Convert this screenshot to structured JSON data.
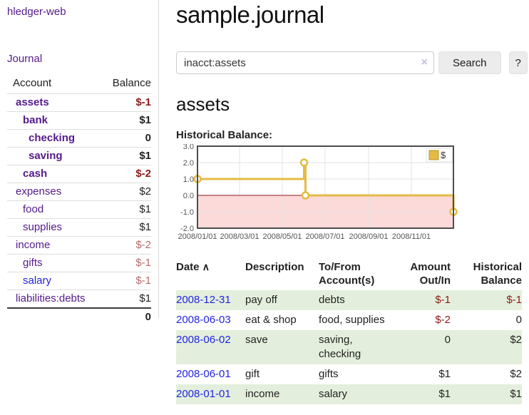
{
  "colors": {
    "link_visited": "#551a8b",
    "link_new": "#2323e0",
    "negative_strong": "#8b1a1a",
    "negative_soft": "#b76b6b",
    "row_shade_green": "#e3efdc",
    "button_bg": "#ececec"
  },
  "sidebar": {
    "brand": "hledger-web",
    "nav_journal": "Journal",
    "accounts": {
      "header_account": "Account",
      "header_balance": "Balance",
      "rows": [
        {
          "account": "assets",
          "balance": "$-1",
          "depth": 1,
          "bold": true,
          "negative": "strong"
        },
        {
          "account": "bank",
          "balance": "$1",
          "depth": 2,
          "bold": true,
          "negative": "none"
        },
        {
          "account": "checking",
          "balance": "0",
          "depth": 3,
          "bold": true,
          "negative": "none"
        },
        {
          "account": "saving",
          "balance": "$1",
          "depth": 3,
          "bold": true,
          "negative": "none"
        },
        {
          "account": "cash",
          "balance": "$-2",
          "depth": 2,
          "bold": true,
          "negative": "strong"
        },
        {
          "account": "expenses",
          "balance": "$2",
          "depth": 1,
          "bold": false,
          "negative": "none"
        },
        {
          "account": "food",
          "balance": "$1",
          "depth": 2,
          "bold": false,
          "negative": "none"
        },
        {
          "account": "supplies",
          "balance": "$1",
          "depth": 2,
          "bold": false,
          "negative": "none"
        },
        {
          "account": "income",
          "balance": "$-2",
          "depth": 1,
          "bold": false,
          "negative": "soft"
        },
        {
          "account": "gifts",
          "balance": "$-1",
          "depth": 2,
          "bold": false,
          "negative": "soft"
        },
        {
          "account": "salary",
          "balance": "$-1",
          "depth": 2,
          "bold": false,
          "negative": "soft",
          "link_style": "new"
        },
        {
          "account": "liabilities:debts",
          "balance": "$1",
          "depth": 1,
          "bold": false,
          "negative": "none"
        }
      ],
      "total": "0"
    }
  },
  "header": {
    "title": "sample.journal"
  },
  "search": {
    "value": "inacct:assets",
    "clear_icon": "×",
    "search_button": "Search",
    "help_button": "?"
  },
  "main": {
    "account_heading": "assets",
    "chart_heading": "Historical Balance:"
  },
  "chart_data": {
    "type": "line",
    "subtype": "step",
    "title": "Historical Balance",
    "x_range": [
      "2008-01-01",
      "2008-12-31"
    ],
    "ylim": [
      -2,
      3
    ],
    "yticks": [
      "3.0",
      "2.0",
      "1.0",
      "0.0",
      "-1.0",
      "-2.0"
    ],
    "xticks": [
      "2008/01/01",
      "2008/03/01",
      "2008/05/01",
      "2008/07/01",
      "2008/09/01",
      "2008/11/01"
    ],
    "grid": true,
    "legend_position": "top-right",
    "series": [
      {
        "name": "$",
        "points": [
          [
            "2008-01-01",
            1
          ],
          [
            "2008-06-01",
            2
          ],
          [
            "2008-06-03",
            0
          ],
          [
            "2008-12-31",
            -1
          ]
        ]
      }
    ],
    "colors": {
      "series": "#e5bb45",
      "series_border": "#b8962e",
      "negative_fill": "#fcdada",
      "zero_line": "#8b1a1a",
      "grid_line": "#e3e3e3",
      "plot_border": "#4d4d4d"
    }
  },
  "register": {
    "headers": {
      "date": "Date",
      "sort_caret": "∧",
      "description": "Description",
      "accounts": "To/From Account(s)",
      "amount": "Amount Out/In",
      "balance": "Historical Balance"
    },
    "rows": [
      {
        "date": "2008-12-31",
        "description": "pay off",
        "accounts": "debts",
        "amount": "$-1",
        "amount_negative": true,
        "balance": "$-1",
        "balance_negative": true,
        "shaded": true
      },
      {
        "date": "2008-06-03",
        "description": "eat & shop",
        "accounts": "food, supplies",
        "amount": "$-2",
        "amount_negative": true,
        "balance": "0",
        "balance_negative": false,
        "shaded": false
      },
      {
        "date": "2008-06-02",
        "description": "save",
        "accounts": "saving, checking",
        "amount": "0",
        "amount_negative": false,
        "balance": "$2",
        "balance_negative": false,
        "shaded": true
      },
      {
        "date": "2008-06-01",
        "description": "gift",
        "accounts": "gifts",
        "amount": "$1",
        "amount_negative": false,
        "balance": "$2",
        "balance_negative": false,
        "shaded": false
      },
      {
        "date": "2008-01-01",
        "description": "income",
        "accounts": "salary",
        "amount": "$1",
        "amount_negative": false,
        "balance": "$1",
        "balance_negative": false,
        "shaded": true
      }
    ]
  }
}
